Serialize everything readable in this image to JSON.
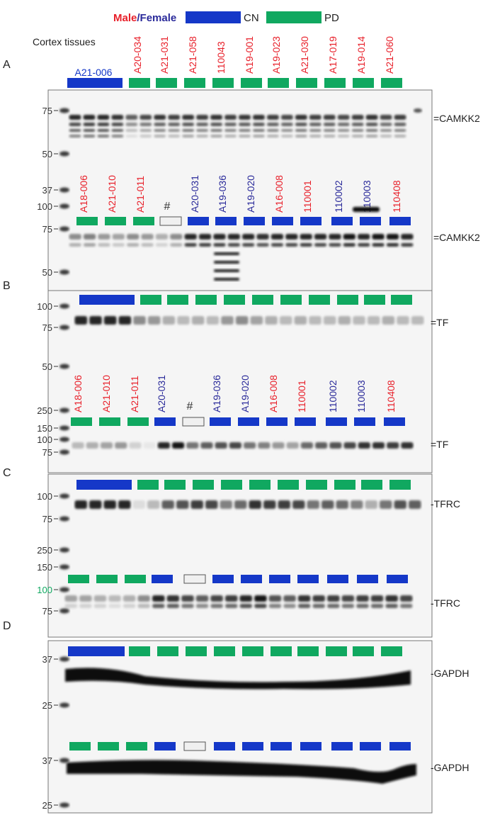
{
  "colors": {
    "male": "#e8202a",
    "female": "#2a2a9a",
    "cn": "#1538c8",
    "pd": "#10a860",
    "marker_green": "#10a860"
  },
  "legend": {
    "male": "Male",
    "slash": "/",
    "female": "Female",
    "cn": "CN",
    "pd": "PD"
  },
  "subtitle": "Cortex tissues",
  "panels": [
    {
      "letter": "A",
      "blots": [
        {
          "header": {
            "single": "A21-006",
            "labels": [
              {
                "t": "A20-034",
                "s": "m"
              },
              {
                "t": "A21-031",
                "s": "m"
              },
              {
                "t": "A21-058",
                "s": "m"
              },
              {
                "t": "110043",
                "s": "m"
              },
              {
                "t": "A19-001",
                "s": "m"
              },
              {
                "t": "A19-023",
                "s": "m"
              },
              {
                "t": "A21-030",
                "s": "m"
              },
              {
                "t": "A17-019",
                "s": "m"
              },
              {
                "t": "A19-014",
                "s": "m"
              },
              {
                "t": "A21-060",
                "s": "m"
              }
            ]
          },
          "markers": [
            "75",
            "50",
            "37"
          ],
          "target": "=CAMKK2"
        },
        {
          "header": {
            "labels": [
              {
                "t": "A18-006",
                "s": "m"
              },
              {
                "t": "A21-010",
                "s": "m"
              },
              {
                "t": "A21-011",
                "s": "m"
              },
              {
                "t": "#",
                "s": "x"
              },
              {
                "t": "A20-031",
                "s": "f"
              },
              {
                "t": "A19-036",
                "s": "f"
              },
              {
                "t": "A19-020",
                "s": "f"
              },
              {
                "t": "A16-008",
                "s": "m"
              },
              {
                "t": "110001",
                "s": "m"
              },
              {
                "t": "110002",
                "s": "f"
              },
              {
                "t": "110003",
                "s": "f"
              },
              {
                "t": "110408",
                "s": "m"
              }
            ]
          },
          "markers": [
            "100",
            "75",
            "50"
          ],
          "target": "=CAMKK2"
        }
      ]
    },
    {
      "letter": "B",
      "blots": [
        {
          "markers": [
            "100",
            "75",
            "50"
          ],
          "target": "=TF"
        },
        {
          "header": {
            "labels": [
              {
                "t": "A18-006",
                "s": "m"
              },
              {
                "t": "A21-010",
                "s": "m"
              },
              {
                "t": "A21-011",
                "s": "m"
              },
              {
                "t": "A20-031",
                "s": "f"
              },
              {
                "t": "#",
                "s": "x"
              },
              {
                "t": "A19-036",
                "s": "f"
              },
              {
                "t": "A19-020",
                "s": "f"
              },
              {
                "t": "A16-008",
                "s": "m"
              },
              {
                "t": "110001",
                "s": "m"
              },
              {
                "t": "110002",
                "s": "f"
              },
              {
                "t": "110003",
                "s": "f"
              },
              {
                "t": "110408",
                "s": "m"
              }
            ]
          },
          "markers": [
            "250",
            "150",
            "100",
            "75"
          ],
          "target": "=TF"
        }
      ]
    },
    {
      "letter": "C",
      "blots": [
        {
          "markers": [
            "100",
            "75",
            "250",
            "150"
          ],
          "target": "-TFRC"
        },
        {
          "markers": [
            "100",
            "75"
          ],
          "target": "-TFRC"
        }
      ]
    },
    {
      "letter": "D",
      "blots": [
        {
          "markers": [
            "37",
            "25"
          ],
          "target": "-GAPDH"
        },
        {
          "markers": [
            "37",
            "25"
          ],
          "target": "-GAPDH"
        }
      ]
    }
  ]
}
